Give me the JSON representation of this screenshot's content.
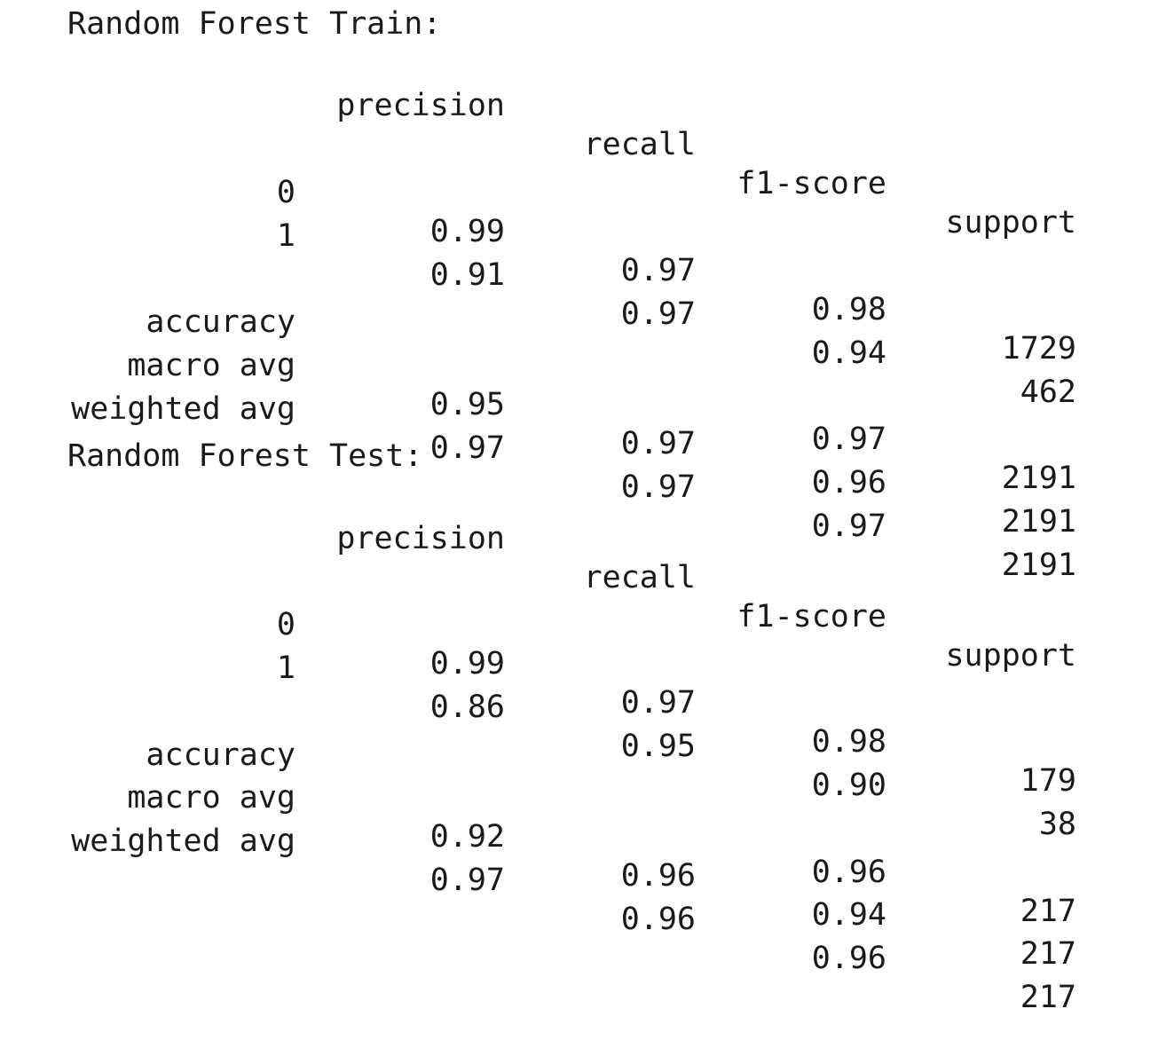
{
  "reports": [
    {
      "title": "Random Forest Train:",
      "headers": {
        "precision": "precision",
        "recall": "recall",
        "f1": "f1-score",
        "support": "support"
      },
      "class_rows": [
        {
          "label": "0",
          "precision": "0.99",
          "recall": "0.97",
          "f1": "0.98",
          "support": "1729"
        },
        {
          "label": "1",
          "precision": "0.91",
          "recall": "0.97",
          "f1": "0.94",
          "support": "462"
        }
      ],
      "summary_rows": [
        {
          "label": "accuracy",
          "precision": "",
          "recall": "",
          "f1": "0.97",
          "support": "2191"
        },
        {
          "label": "macro avg",
          "precision": "0.95",
          "recall": "0.97",
          "f1": "0.96",
          "support": "2191"
        },
        {
          "label": "weighted avg",
          "precision": "0.97",
          "recall": "0.97",
          "f1": "0.97",
          "support": "2191"
        }
      ]
    },
    {
      "title": "Random Forest Test:",
      "headers": {
        "precision": "precision",
        "recall": "recall",
        "f1": "f1-score",
        "support": "support"
      },
      "class_rows": [
        {
          "label": "0",
          "precision": "0.99",
          "recall": "0.97",
          "f1": "0.98",
          "support": "179"
        },
        {
          "label": "1",
          "precision": "0.86",
          "recall": "0.95",
          "f1": "0.90",
          "support": "38"
        }
      ],
      "summary_rows": [
        {
          "label": "accuracy",
          "precision": "",
          "recall": "",
          "f1": "0.96",
          "support": "217"
        },
        {
          "label": "macro avg",
          "precision": "0.92",
          "recall": "0.96",
          "f1": "0.94",
          "support": "217"
        },
        {
          "label": "weighted avg",
          "precision": "0.97",
          "recall": "0.96",
          "f1": "0.96",
          "support": "217"
        }
      ]
    }
  ]
}
